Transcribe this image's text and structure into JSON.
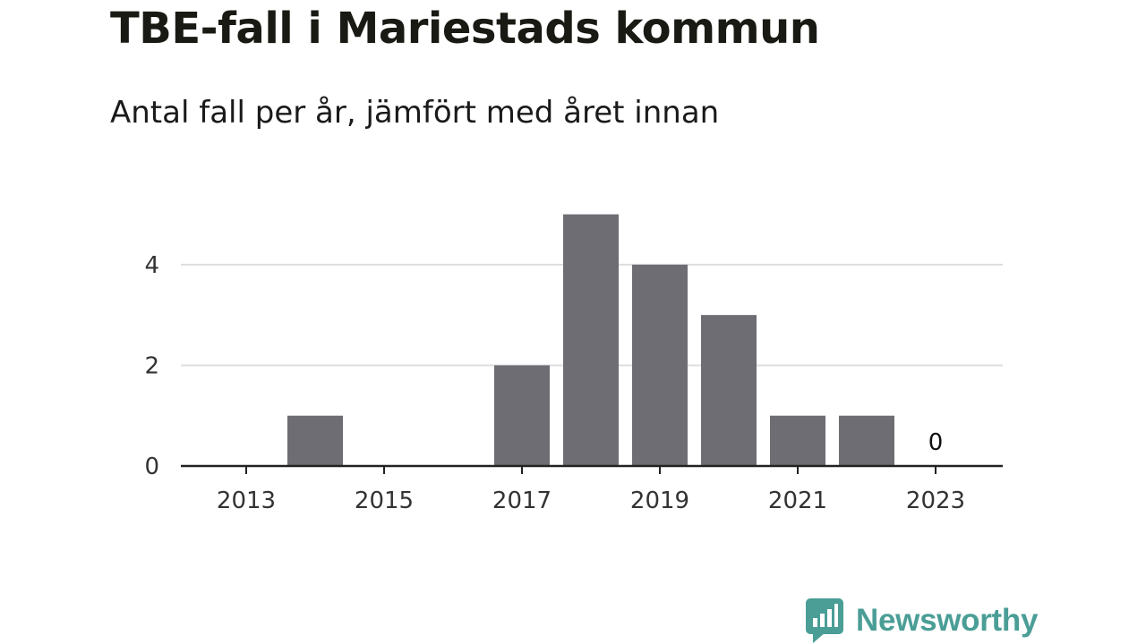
{
  "header": {
    "title": "TBE-fall i Mariestads kommun",
    "subtitle": "Antal fall per år, jämfört med året innan"
  },
  "brand": {
    "name": "Newsworthy",
    "icon": "newsworthy-logo-icon",
    "color": "#4a9e96"
  },
  "chart_data": {
    "type": "bar",
    "title": "TBE-fall i Mariestads kommun",
    "subtitle": "Antal fall per år, jämfört med året innan",
    "xlabel": "",
    "ylabel": "",
    "x": [
      2013,
      2014,
      2015,
      2016,
      2017,
      2018,
      2019,
      2020,
      2021,
      2022,
      2023
    ],
    "values": [
      0,
      1,
      0,
      0,
      2,
      5,
      4,
      3,
      1,
      1,
      0
    ],
    "xticks": [
      "2013",
      "2015",
      "2017",
      "2019",
      "2021",
      "2023"
    ],
    "yticks": [
      0,
      2,
      4
    ],
    "ylim": [
      0,
      5.1
    ],
    "grid": true,
    "bar_color": "#6e6d73",
    "annotations": [
      {
        "x": 2023,
        "text": "0"
      }
    ]
  }
}
